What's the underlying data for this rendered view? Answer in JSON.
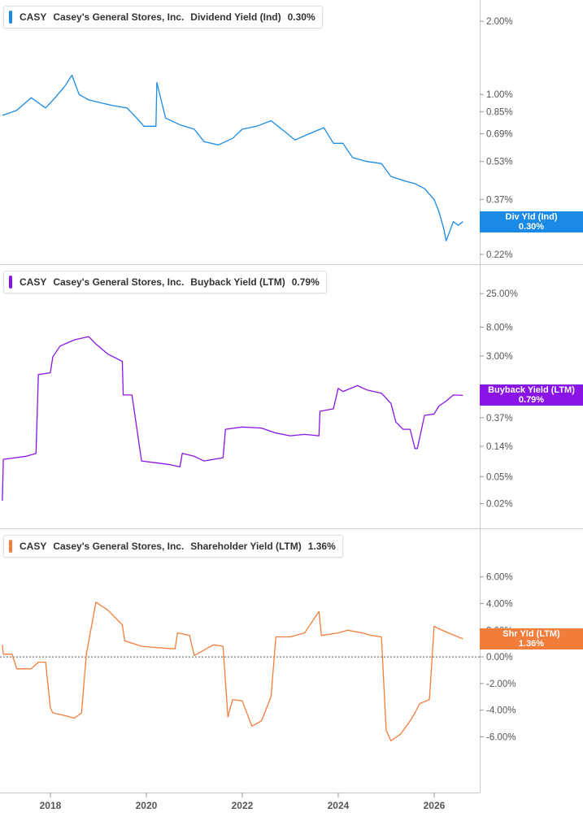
{
  "chart_data": [
    {
      "type": "line",
      "symbol": "CASY",
      "company": "Casey's General Stores, Inc.",
      "metric": "Dividend Yield (Ind)",
      "current": "0.30%",
      "flag_label": "Div Yld (Ind)",
      "flag_value": "0.30%",
      "color": "#1a8ae6",
      "scale": "log",
      "ylim": [
        0.21,
        2.3
      ],
      "yticks": [
        0.22,
        0.37,
        0.53,
        0.69,
        0.85,
        1.0,
        2.0
      ],
      "ytick_labels": [
        "0.22%",
        "0.37%",
        "0.53%",
        "0.69%",
        "0.85%",
        "1.00%",
        "2.00%"
      ],
      "x": [
        2017.0,
        2017.3,
        2017.6,
        2017.9,
        2018.1,
        2018.3,
        2018.45,
        2018.6,
        2018.8,
        2019.0,
        2019.3,
        2019.6,
        2019.8,
        2019.95,
        2020.2,
        2020.22,
        2020.4,
        2020.7,
        2021.0,
        2021.2,
        2021.5,
        2021.8,
        2022.0,
        2022.3,
        2022.6,
        2022.9,
        2023.1,
        2023.4,
        2023.7,
        2023.9,
        2024.1,
        2024.3,
        2024.6,
        2024.9,
        2025.1,
        2025.4,
        2025.6,
        2025.8,
        2026.0,
        2026.1,
        2026.2,
        2026.25,
        2026.4,
        2026.5,
        2026.6
      ],
      "values": [
        0.82,
        0.86,
        0.97,
        0.88,
        0.97,
        1.08,
        1.2,
        1.0,
        0.95,
        0.93,
        0.9,
        0.88,
        0.8,
        0.74,
        0.74,
        1.12,
        0.8,
        0.75,
        0.72,
        0.64,
        0.62,
        0.66,
        0.72,
        0.74,
        0.78,
        0.7,
        0.65,
        0.69,
        0.73,
        0.63,
        0.63,
        0.55,
        0.53,
        0.52,
        0.46,
        0.44,
        0.43,
        0.41,
        0.37,
        0.33,
        0.28,
        0.25,
        0.3,
        0.29,
        0.3
      ]
    },
    {
      "type": "line",
      "symbol": "CASY",
      "company": "Casey's General Stores, Inc.",
      "metric": "Buyback Yield (LTM)",
      "current": "0.79%",
      "flag_label": "Buyback Yield (LTM)",
      "flag_value": "0.79%",
      "color": "#8a14e6",
      "scale": "log",
      "ylim": [
        0.015,
        35
      ],
      "yticks": [
        0.02,
        0.05,
        0.14,
        0.37,
        1.0,
        3.0,
        8.0,
        25.0
      ],
      "ytick_labels": [
        "0.02%",
        "0.05%",
        "0.14%",
        "0.37%",
        "1.00%",
        "3.00%",
        "8.00%",
        "25.00%"
      ],
      "x": [
        2017.0,
        2017.02,
        2017.5,
        2017.7,
        2017.75,
        2018.0,
        2018.05,
        2018.2,
        2018.5,
        2018.8,
        2018.95,
        2019.2,
        2019.5,
        2019.52,
        2019.7,
        2019.9,
        2020.2,
        2020.5,
        2020.7,
        2020.75,
        2021.0,
        2021.2,
        2021.4,
        2021.6,
        2021.65,
        2022.0,
        2022.4,
        2022.7,
        2023.0,
        2023.3,
        2023.6,
        2023.62,
        2023.9,
        2024.0,
        2024.1,
        2024.4,
        2024.6,
        2024.9,
        2025.1,
        2025.2,
        2025.35,
        2025.5,
        2025.6,
        2025.65,
        2025.8,
        2026.0,
        2026.1,
        2026.25,
        2026.4,
        2026.6
      ],
      "values": [
        0.022,
        0.09,
        0.1,
        0.11,
        1.6,
        1.7,
        2.9,
        4.2,
        5.2,
        5.8,
        4.5,
        3.2,
        2.5,
        0.8,
        0.8,
        0.085,
        0.08,
        0.075,
        0.07,
        0.11,
        0.1,
        0.085,
        0.09,
        0.095,
        0.25,
        0.27,
        0.26,
        0.22,
        0.2,
        0.21,
        0.2,
        0.46,
        0.5,
        1.0,
        0.9,
        1.1,
        0.95,
        0.85,
        0.6,
        0.32,
        0.25,
        0.25,
        0.13,
        0.13,
        0.4,
        0.42,
        0.55,
        0.65,
        0.8,
        0.79
      ]
    },
    {
      "type": "line",
      "symbol": "CASY",
      "company": "Casey's General Stores, Inc.",
      "metric": "Shareholder Yield (LTM)",
      "current": "1.36%",
      "flag_label": "Shr Yld (LTM)",
      "flag_value": "1.36%",
      "color": "#f27d3a",
      "scale": "linear",
      "ylim": [
        -7.8,
        7.2
      ],
      "yticks": [
        -6,
        -4,
        -2,
        0,
        2,
        4,
        6
      ],
      "ytick_labels": [
        "-6.00%",
        "-4.00%",
        "-2.00%",
        "0.00%",
        "2.00%",
        "4.00%",
        "6.00%"
      ],
      "zero_line": true,
      "x": [
        2017.0,
        2017.02,
        2017.2,
        2017.3,
        2017.6,
        2017.75,
        2017.9,
        2018.0,
        2018.05,
        2018.3,
        2018.5,
        2018.65,
        2018.75,
        2018.95,
        2019.2,
        2019.5,
        2019.55,
        2019.9,
        2020.2,
        2020.6,
        2020.65,
        2020.9,
        2021.0,
        2021.4,
        2021.6,
        2021.7,
        2021.8,
        2022.0,
        2022.2,
        2022.4,
        2022.6,
        2022.7,
        2023.0,
        2023.3,
        2023.6,
        2023.65,
        2024.0,
        2024.2,
        2024.5,
        2024.7,
        2024.9,
        2025.0,
        2025.1,
        2025.3,
        2025.5,
        2025.6,
        2025.7,
        2025.9,
        2026.0,
        2026.1,
        2026.3,
        2026.5,
        2026.6
      ],
      "values": [
        0.9,
        0.2,
        0.2,
        -0.9,
        -0.9,
        -0.4,
        -0.4,
        -3.8,
        -4.2,
        -4.4,
        -4.6,
        -4.2,
        0.2,
        4.1,
        3.5,
        2.4,
        1.2,
        0.8,
        0.7,
        0.6,
        1.8,
        1.6,
        0.1,
        0.9,
        0.8,
        -4.5,
        -3.2,
        -3.3,
        -5.2,
        -4.8,
        -3.0,
        1.5,
        1.5,
        1.8,
        3.4,
        1.6,
        1.8,
        2.0,
        1.8,
        1.6,
        1.5,
        -5.5,
        -6.3,
        -5.8,
        -4.8,
        -4.2,
        -3.5,
        -3.2,
        2.3,
        2.1,
        1.8,
        1.5,
        1.36
      ]
    }
  ],
  "x_axis": {
    "ticks": [
      2018,
      2020,
      2022,
      2024,
      2026
    ],
    "tick_labels": [
      "2018",
      "2020",
      "2022",
      "2024",
      "2026"
    ],
    "range": [
      2016.95,
      2026.95
    ]
  }
}
